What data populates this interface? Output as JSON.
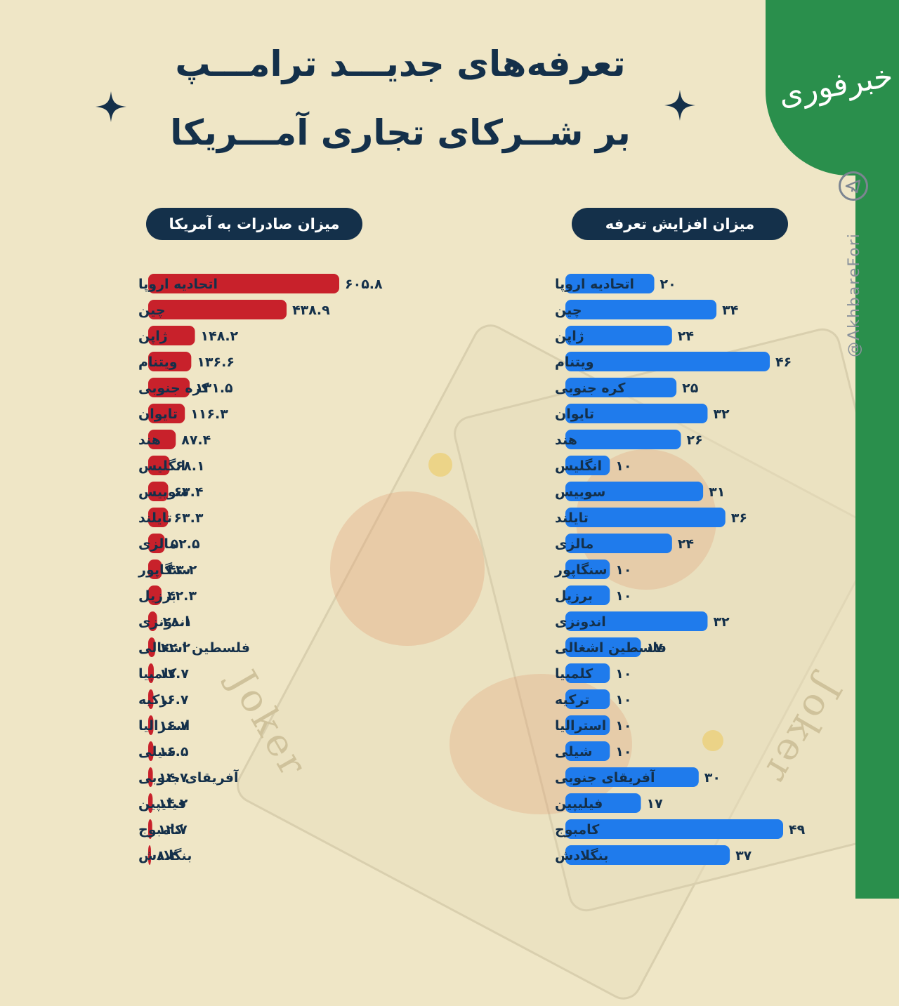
{
  "title_line1": "تعرفه‌های جدیـــد ترامـــپ",
  "title_line2": "بر شــرکای تجاری آمـــریکا",
  "brand": {
    "logo_text": "خبرفوری",
    "handle": "@AkhbareFori",
    "colors": {
      "green": "#2a8f4c",
      "navy": "#14304a",
      "background": "#efe6c6"
    }
  },
  "decor": {
    "card_text": "Joker"
  },
  "chart_data": [
    {
      "type": "bar",
      "orientation": "horizontal",
      "title": "میزان صادرات به آمریکا",
      "color": "#c8212b",
      "categories": [
        "اتحادیه اروپا",
        "چین",
        "ژاپن",
        "ویتنام",
        "کره جنوبی",
        "تایوان",
        "هند",
        "انگلیس",
        "سوییس",
        "تایلند",
        "مالزی",
        "سنگاپور",
        "برزیل",
        "اندونزی",
        "فلسطین اشغالی",
        "کلمبیا",
        "ترکیه",
        "استرالیا",
        "شیلی",
        "آفریقای جنوبی",
        "فیلیپین",
        "کامبوج",
        "بنگلادش"
      ],
      "values": [
        605.8,
        438.9,
        148.2,
        136.6,
        131.5,
        116.3,
        87.4,
        68.1,
        63.4,
        63.3,
        52.5,
        43.2,
        42.3,
        28.1,
        22.2,
        17.7,
        16.7,
        16.7,
        16.5,
        14.7,
        14.2,
        12.7,
        8.4
      ],
      "value_labels": [
        "۶۰۵.۸",
        "۴۳۸.۹",
        "۱۴۸.۲",
        "۱۳۶.۶",
        "۱۳۱.۵",
        "۱۱۶.۳",
        "۸۷.۴",
        "۶۸.۱",
        "۶۳.۴",
        "۶۳.۳",
        "۵۲.۵",
        "۴۳.۲",
        "۴۲.۳",
        "۲۸.۱",
        "۲۲.۲",
        "۱۷.۷",
        "۱۶.۷",
        "۱۶.۷",
        "۱۶.۵",
        "۱۴.۷",
        "۱۴.۲",
        "۱۲.۷",
        "۸.۴"
      ],
      "xlim": [
        0,
        605.8
      ]
    },
    {
      "type": "bar",
      "orientation": "horizontal",
      "title": "میزان افزایش تعرفه",
      "color": "#1f7bec",
      "categories": [
        "اتحادیه اروپا",
        "چین",
        "ژاپن",
        "ویتنام",
        "کره جنوبی",
        "تایوان",
        "هند",
        "انگلیس",
        "سوییس",
        "تایلند",
        "مالزی",
        "سنگاپور",
        "برزیل",
        "اندونزی",
        "فلسطین اشغالی",
        "کلمبیا",
        "ترکیه",
        "استرالیا",
        "شیلی",
        "آفریقای جنوبی",
        "فیلیپین",
        "کامبوج",
        "بنگلادش"
      ],
      "values": [
        20,
        34,
        24,
        46,
        25,
        32,
        26,
        10,
        31,
        36,
        24,
        10,
        10,
        32,
        17,
        10,
        10,
        10,
        10,
        30,
        17,
        49,
        37
      ],
      "value_labels": [
        "۲۰",
        "۳۴",
        "۲۴",
        "۴۶",
        "۲۵",
        "۳۲",
        "۲۶",
        "۱۰",
        "۳۱",
        "۳۶",
        "۲۴",
        "۱۰",
        "۱۰",
        "۳۲",
        "۱۷",
        "۱۰",
        "۱۰",
        "۱۰",
        "۱۰",
        "۳۰",
        "۱۷",
        "۴۹",
        "۳۷"
      ],
      "xlim": [
        0,
        49
      ]
    }
  ]
}
